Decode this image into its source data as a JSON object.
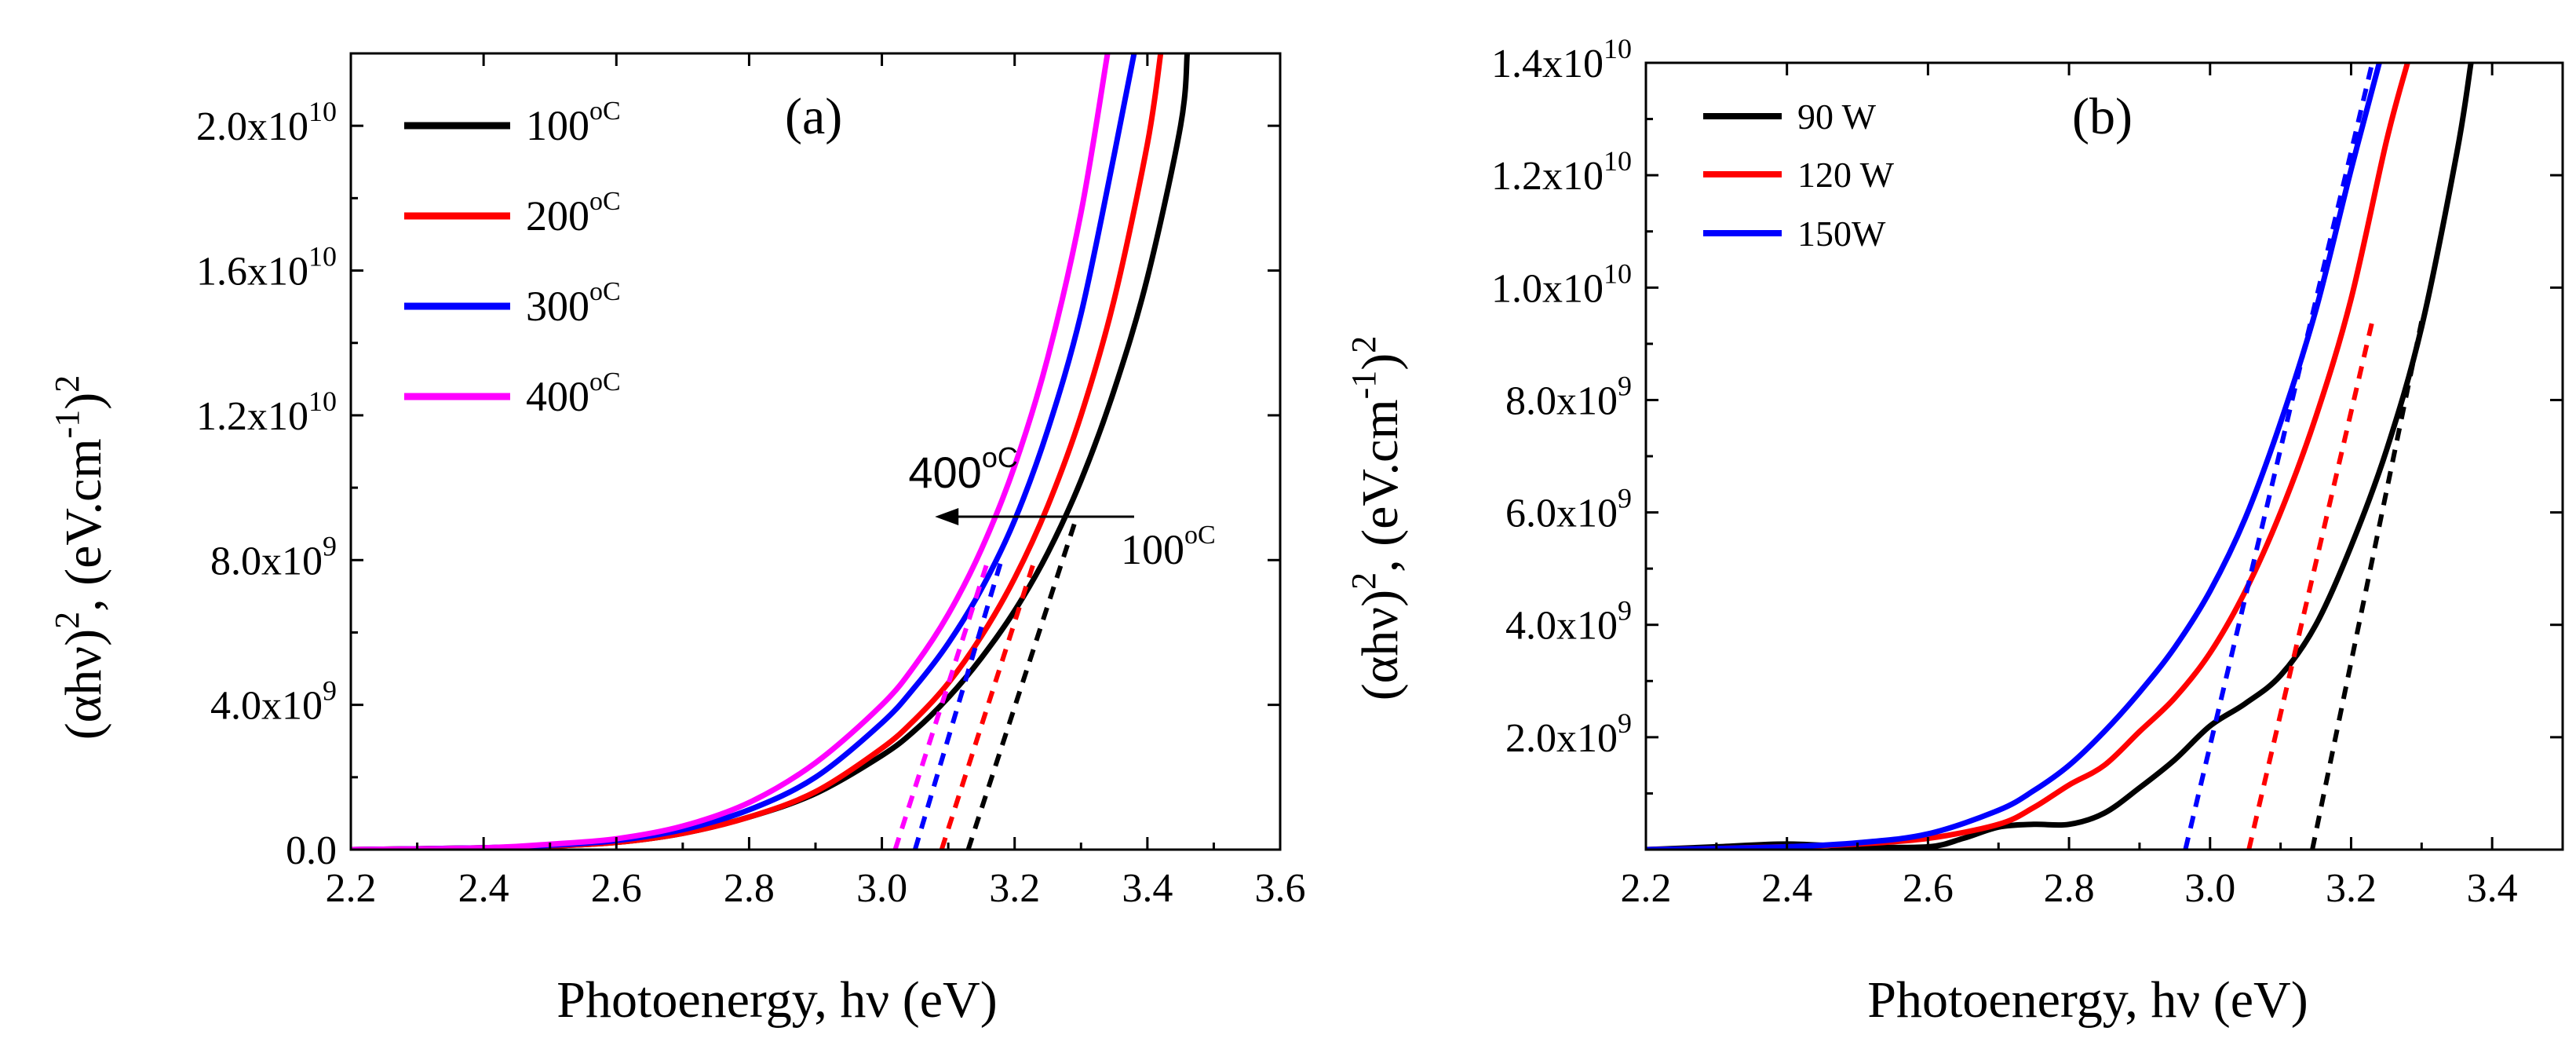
{
  "chart_data": [
    {
      "type": "line",
      "panel_label": "(a)",
      "xlabel": "Photoenergy, hν (eV)",
      "ylabel": "(αhν)², (eV.cm⁻¹)²",
      "ylabel_parts": {
        "base": "(αhν)",
        "sup1": "2",
        "mid": ", (eV.cm",
        "sup2": "-1",
        "end": ")",
        "sup3": "2"
      },
      "xlim": [
        2.2,
        3.6
      ],
      "ylim": [
        0,
        22000000000
      ],
      "x_ticks": [
        {
          "v": 2.2,
          "label": "2.2"
        },
        {
          "v": 2.4,
          "label": "2.4"
        },
        {
          "v": 2.6,
          "label": "2.6"
        },
        {
          "v": 2.8,
          "label": "2.8"
        },
        {
          "v": 3.0,
          "label": "3.0"
        },
        {
          "v": 3.2,
          "label": "3.2"
        },
        {
          "v": 3.4,
          "label": "3.4"
        },
        {
          "v": 3.6,
          "label": "3.6"
        }
      ],
      "y_ticks": [
        {
          "v": 0,
          "mant": "0.0",
          "exp": ""
        },
        {
          "v": 4000000000,
          "mant": "4.0x10",
          "exp": "9"
        },
        {
          "v": 8000000000,
          "mant": "8.0x10",
          "exp": "9"
        },
        {
          "v": 12000000000,
          "mant": "1.2x10",
          "exp": "10"
        },
        {
          "v": 16000000000,
          "mant": "1.6x10",
          "exp": "10"
        },
        {
          "v": 20000000000,
          "mant": "2.0x10",
          "exp": "10"
        }
      ],
      "legend_position": "top-left",
      "series": [
        {
          "name": "100",
          "unit": "oC",
          "color": "#000000",
          "x": [
            2.2,
            2.4,
            2.5,
            2.6,
            2.7,
            2.8,
            2.9,
            3.0,
            3.05,
            3.1,
            3.15,
            3.2,
            3.25,
            3.3,
            3.35,
            3.4,
            3.45,
            3.46
          ],
          "y": [
            0,
            50000000.0,
            100000000.0,
            200000000.0,
            450000000.0,
            900000000.0,
            1550000000.0,
            2600000000.0,
            3300000000.0,
            4200000000.0,
            5300000000.0,
            6600000000.0,
            8200000000.0,
            10200000000.0,
            12700000000.0,
            15800000000.0,
            20000000000.0,
            22000000000.0
          ]
        },
        {
          "name": "200",
          "unit": "oC",
          "color": "#ff0000",
          "x": [
            2.2,
            2.4,
            2.5,
            2.6,
            2.7,
            2.8,
            2.9,
            3.0,
            3.05,
            3.1,
            3.15,
            3.2,
            3.25,
            3.3,
            3.35,
            3.4,
            3.42
          ],
          "y": [
            0,
            50000000.0,
            100000000.0,
            200000000.0,
            450000000.0,
            900000000.0,
            1600000000.0,
            2800000000.0,
            3600000000.0,
            4600000000.0,
            5900000000.0,
            7500000000.0,
            9500000000.0,
            12000000000.0,
            15200000000.0,
            19500000000.0,
            22000000000.0
          ]
        },
        {
          "name": "300",
          "unit": "oC",
          "color": "#0000ff",
          "x": [
            2.2,
            2.4,
            2.5,
            2.6,
            2.7,
            2.8,
            2.9,
            3.0,
            3.05,
            3.1,
            3.15,
            3.2,
            3.25,
            3.3,
            3.35,
            3.38
          ],
          "y": [
            0,
            50000000.0,
            120000000.0,
            250000000.0,
            550000000.0,
            1100000000.0,
            2000000000.0,
            3500000000.0,
            4500000000.0,
            5700000000.0,
            7200000000.0,
            9100000000.0,
            11600000000.0,
            14800000000.0,
            19200000000.0,
            22000000000.0
          ]
        },
        {
          "name": "400",
          "unit": "oC",
          "color": "#ff00ff",
          "x": [
            2.2,
            2.4,
            2.5,
            2.6,
            2.7,
            2.8,
            2.9,
            3.0,
            3.05,
            3.1,
            3.15,
            3.2,
            3.25,
            3.3,
            3.34
          ],
          "y": [
            0,
            50000000.0,
            150000000.0,
            300000000.0,
            650000000.0,
            1300000000.0,
            2400000000.0,
            4000000000.0,
            5100000000.0,
            6500000000.0,
            8300000000.0,
            10600000000.0,
            13600000000.0,
            17600000000.0,
            22000000000.0
          ]
        }
      ],
      "fits": [
        {
          "color": "#000000",
          "x": [
            3.13,
            3.29
          ],
          "y": [
            0,
            9000000000.0
          ]
        },
        {
          "color": "#ff0000",
          "x": [
            3.09,
            3.23
          ],
          "y": [
            0,
            8000000000.0
          ]
        },
        {
          "color": "#0000ff",
          "x": [
            3.05,
            3.18
          ],
          "y": [
            0,
            8000000000.0
          ]
        },
        {
          "color": "#ff00ff",
          "x": [
            3.02,
            3.16
          ],
          "y": [
            0,
            8000000000.0
          ]
        }
      ],
      "annotations": {
        "arrow": {
          "from": [
            3.38,
            9200000000.0
          ],
          "to": [
            3.08,
            9200000000.0
          ]
        },
        "high_label": {
          "text": "400",
          "unit": "oC",
          "x": 3.04,
          "y": 10000000000.0
        },
        "low_label": {
          "text": "100",
          "unit": "oC",
          "x": 3.36,
          "y": 7900000000.0
        }
      }
    },
    {
      "type": "line",
      "panel_label": "(b)",
      "xlabel": "Photoenergy, hν (eV)",
      "ylabel": "(αhν)², (eV.cm⁻¹)²",
      "ylabel_parts": {
        "base": "(αhν)",
        "sup1": "2",
        "mid": ", (eV.cm",
        "sup2": "-1",
        "end": ")",
        "sup3": "2"
      },
      "xlim": [
        2.2,
        3.5
      ],
      "ylim": [
        0,
        14000000000
      ],
      "x_ticks": [
        {
          "v": 2.2,
          "label": "2.2"
        },
        {
          "v": 2.4,
          "label": "2.4"
        },
        {
          "v": 2.6,
          "label": "2.6"
        },
        {
          "v": 2.8,
          "label": "2.8"
        },
        {
          "v": 3.0,
          "label": "3.0"
        },
        {
          "v": 3.2,
          "label": "3.2"
        },
        {
          "v": 3.4,
          "label": "3.4"
        }
      ],
      "y_ticks": [
        {
          "v": 2000000000,
          "mant": "2.0x10",
          "exp": "9"
        },
        {
          "v": 4000000000,
          "mant": "4.0x10",
          "exp": "9"
        },
        {
          "v": 6000000000,
          "mant": "6.0x10",
          "exp": "9"
        },
        {
          "v": 8000000000,
          "mant": "8.0x10",
          "exp": "9"
        },
        {
          "v": 10000000000,
          "mant": "1.0x10",
          "exp": "10"
        },
        {
          "v": 12000000000,
          "mant": "1.2x10",
          "exp": "10"
        },
        {
          "v": 14000000000,
          "mant": "1.4x10",
          "exp": "10"
        }
      ],
      "legend_position": "top-left",
      "series": [
        {
          "name": "90 W",
          "color": "#000000",
          "x": [
            2.2,
            2.3,
            2.4,
            2.5,
            2.6,
            2.65,
            2.7,
            2.75,
            2.8,
            2.85,
            2.9,
            2.95,
            3.0,
            3.05,
            3.1,
            3.15,
            3.2,
            3.25,
            3.3,
            3.35,
            3.37
          ],
          "y": [
            0,
            50000000.0,
            100000000.0,
            50000000.0,
            50000000.0,
            200000000.0,
            400000000.0,
            450000000.0,
            450000000.0,
            650000000.0,
            1100000000.0,
            1600000000.0,
            2200000000.0,
            2600000000.0,
            3100000000.0,
            4000000000.0,
            5400000000.0,
            7100000000.0,
            9300000000.0,
            12400000000.0,
            14000000000.0
          ]
        },
        {
          "name": "120 W",
          "color": "#ff0000",
          "x": [
            2.2,
            2.3,
            2.4,
            2.5,
            2.6,
            2.7,
            2.75,
            2.8,
            2.85,
            2.9,
            2.95,
            3.0,
            3.05,
            3.1,
            3.15,
            3.2,
            3.25,
            3.28
          ],
          "y": [
            0,
            20000000.0,
            50000000.0,
            100000000.0,
            200000000.0,
            450000000.0,
            750000000.0,
            1150000000.0,
            1500000000.0,
            2100000000.0,
            2700000000.0,
            3500000000.0,
            4600000000.0,
            6000000000.0,
            7700000000.0,
            9800000000.0,
            12600000000.0,
            14000000000.0
          ]
        },
        {
          "name": "150W",
          "color": "#0000ff",
          "x": [
            2.2,
            2.3,
            2.4,
            2.5,
            2.6,
            2.7,
            2.75,
            2.8,
            2.85,
            2.9,
            2.95,
            3.0,
            3.05,
            3.1,
            3.15,
            3.2,
            3.24
          ],
          "y": [
            0,
            20000000.0,
            50000000.0,
            120000000.0,
            280000000.0,
            700000000.0,
            1050000000.0,
            1500000000.0,
            2100000000.0,
            2800000000.0,
            3600000000.0,
            4600000000.0,
            5900000000.0,
            7600000000.0,
            9600000000.0,
            12100000000.0,
            14000000000.0
          ]
        }
      ],
      "fits": [
        {
          "color": "#000000",
          "x": [
            3.145,
            3.3
          ],
          "y": [
            0,
            9400000000.0
          ]
        },
        {
          "color": "#ff0000",
          "x": [
            3.055,
            3.23
          ],
          "y": [
            0,
            9400000000.0
          ]
        },
        {
          "color": "#0000ff",
          "x": [
            2.965,
            3.23
          ],
          "y": [
            0,
            14000000000.0
          ]
        }
      ]
    }
  ]
}
